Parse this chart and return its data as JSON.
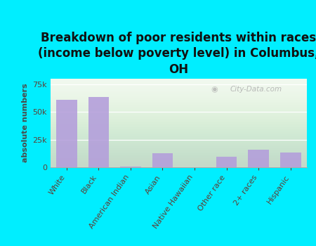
{
  "title": "Breakdown of poor residents within races\n(income below poverty level) in Columbus,\nOH",
  "categories": [
    "White",
    "Black",
    "American Indian",
    "Asian",
    "Native Hawaiian",
    "Other race",
    "2+ races",
    "Hispanic"
  ],
  "values": [
    61000,
    63500,
    800,
    12500,
    300,
    9500,
    16000,
    13500
  ],
  "bar_color": "#b39ddb",
  "background_color": "#00eeff",
  "ylabel": "absolute numbers",
  "ylim": [
    0,
    80000
  ],
  "yticks": [
    0,
    25000,
    50000,
    75000
  ],
  "ytick_labels": [
    "0",
    "25k",
    "50k",
    "75k"
  ],
  "title_fontsize": 12,
  "axis_label_fontsize": 8,
  "tick_fontsize": 8,
  "watermark": "City-Data.com",
  "grid_color": "#dddddd"
}
